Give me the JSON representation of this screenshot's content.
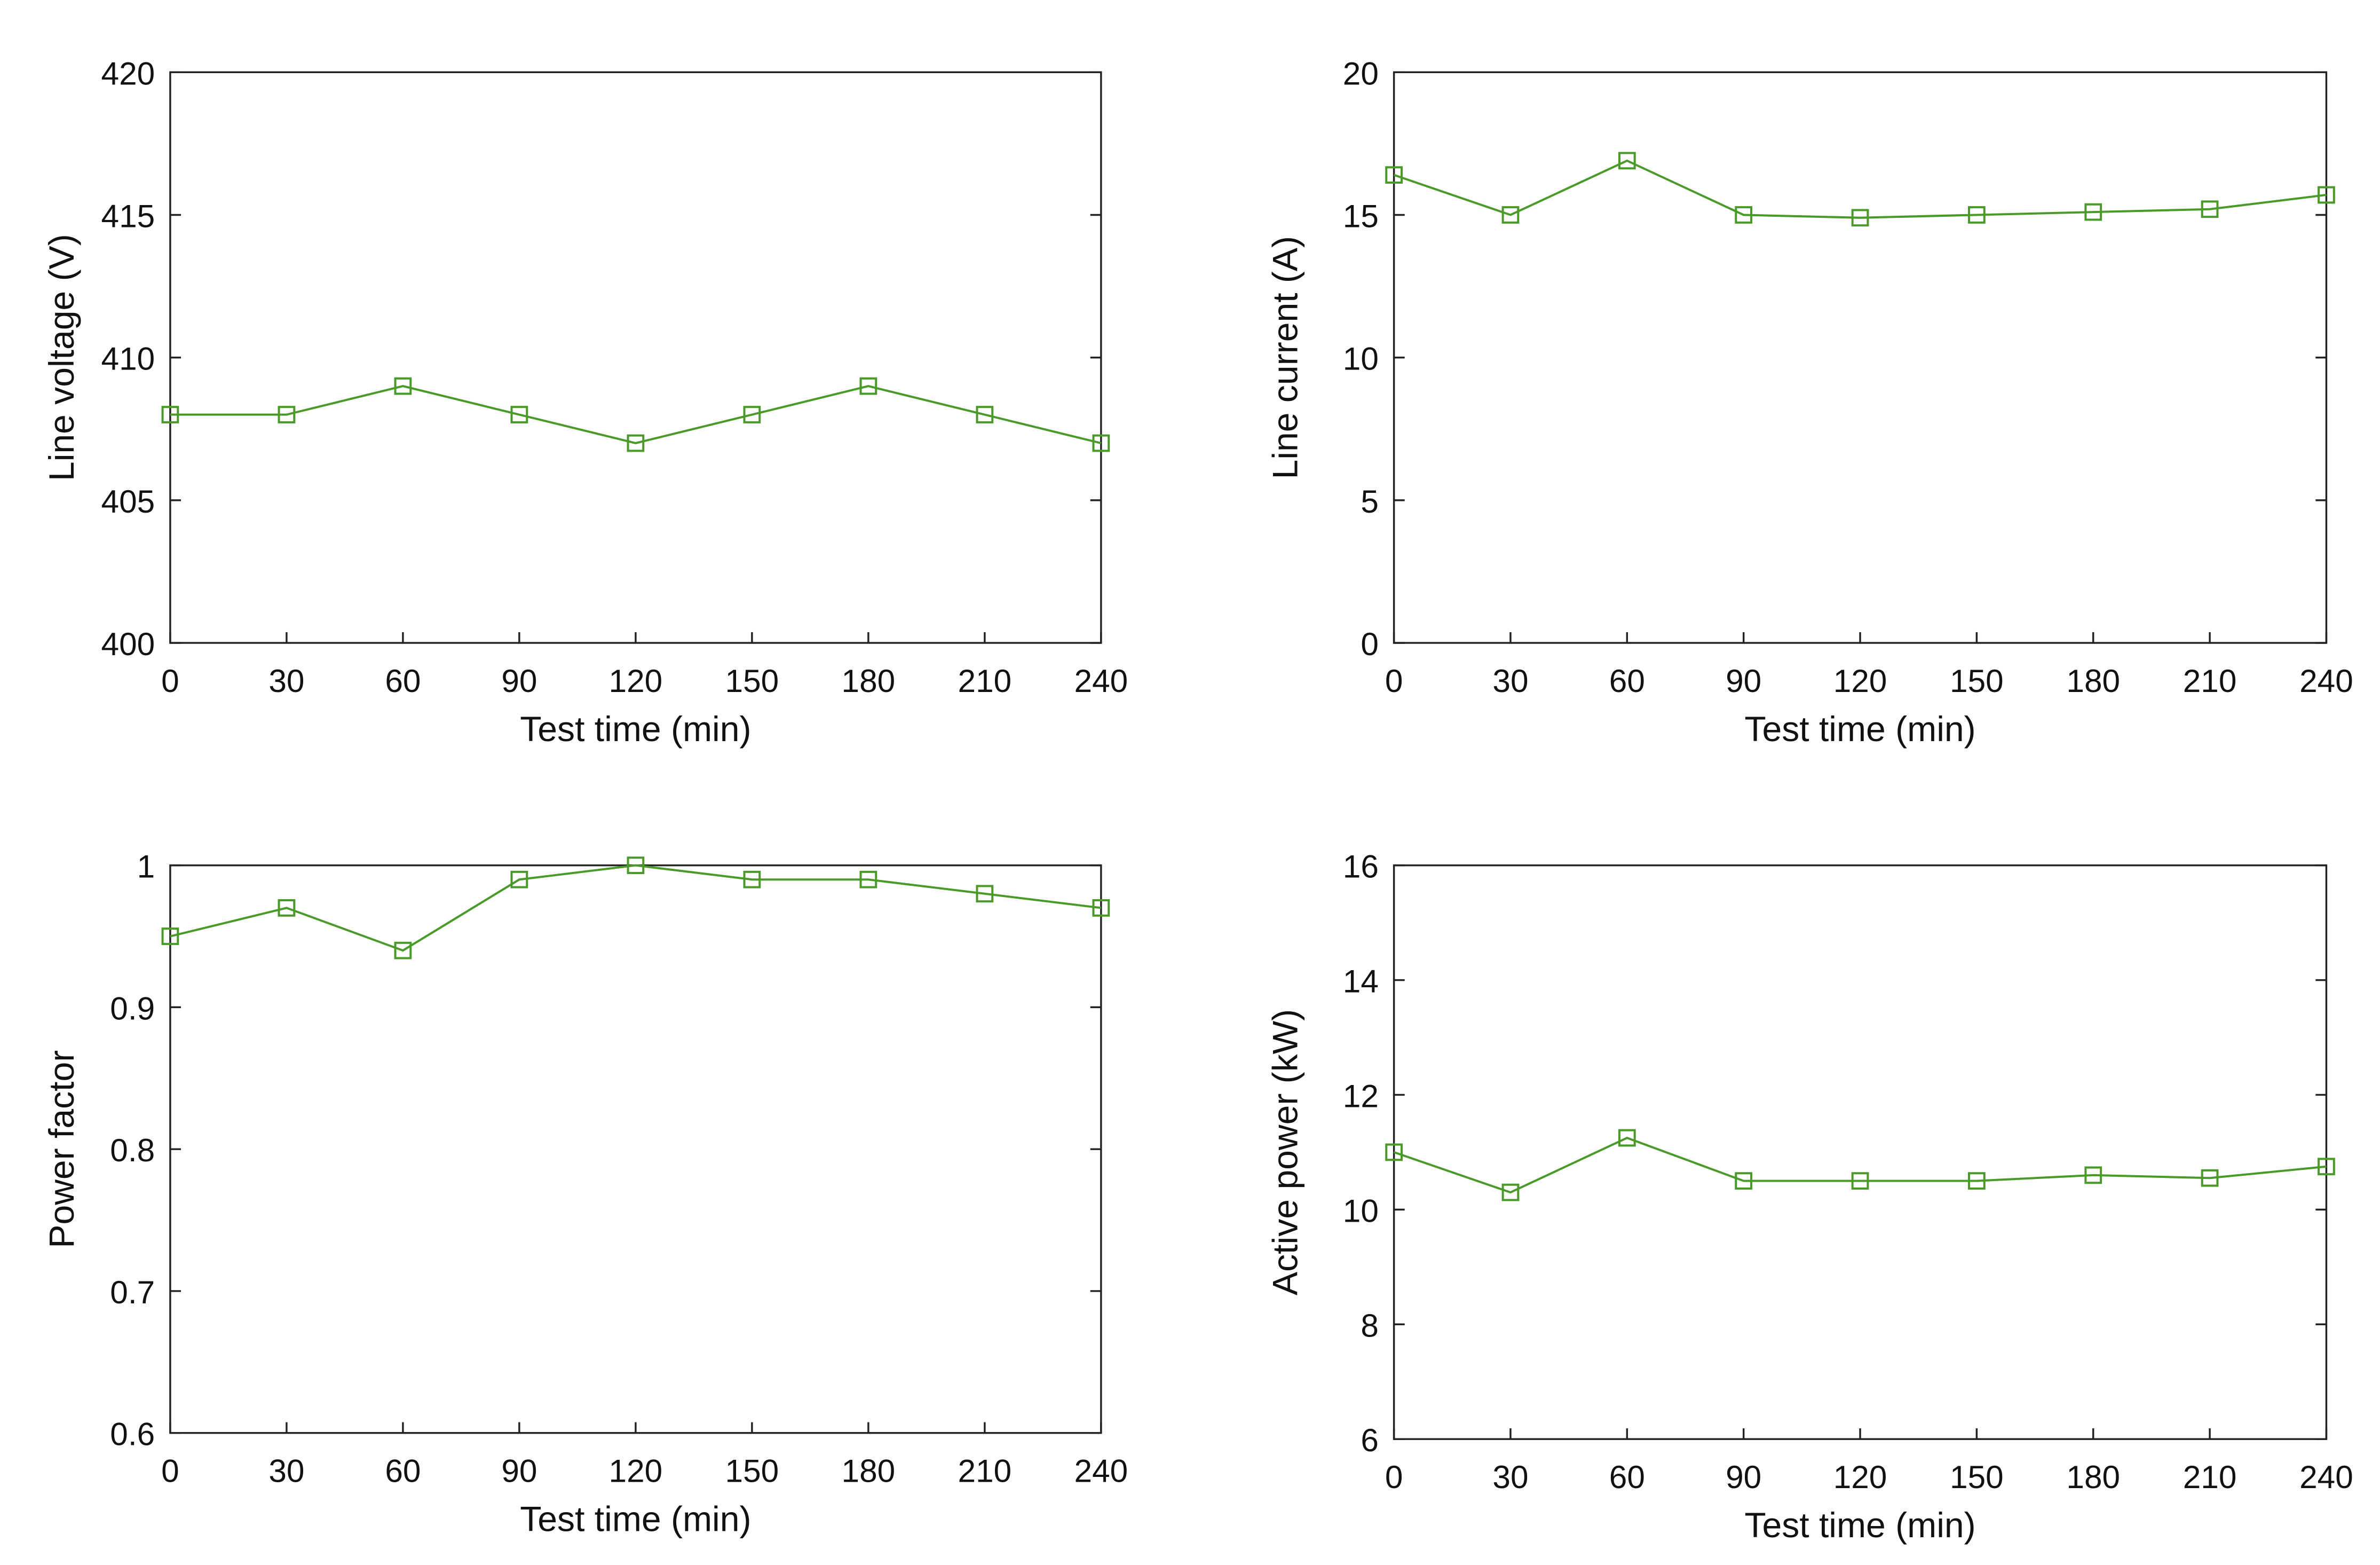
{
  "chart_data": [
    {
      "type": "line",
      "xlabel": "Test time (min)",
      "ylabel": "Line voltage (V)",
      "x": [
        0,
        30,
        60,
        90,
        120,
        150,
        180,
        210,
        240
      ],
      "values": [
        408,
        408,
        409,
        408,
        407,
        408,
        409,
        408,
        407
      ],
      "color": "#4a9a2a",
      "xlim": [
        0,
        240
      ],
      "xticks": [
        0,
        30,
        60,
        90,
        120,
        150,
        180,
        210,
        240
      ],
      "ylim": [
        400,
        420
      ],
      "yticks": [
        400,
        405,
        410,
        415,
        420
      ]
    },
    {
      "type": "line",
      "xlabel": "Test time (min)",
      "ylabel": "Line current (A)",
      "x": [
        0,
        30,
        60,
        90,
        120,
        150,
        180,
        210,
        240
      ],
      "values": [
        16.4,
        15,
        16.9,
        15,
        14.9,
        15,
        15.1,
        15.2,
        15.7
      ],
      "color": "#4a9a2a",
      "xlim": [
        0,
        240
      ],
      "xticks": [
        0,
        30,
        60,
        90,
        120,
        150,
        180,
        210,
        240
      ],
      "ylim": [
        0,
        20
      ],
      "yticks": [
        0,
        5,
        10,
        15,
        20
      ]
    },
    {
      "type": "line",
      "xlabel": "Test time (min)",
      "ylabel": "Power factor",
      "x": [
        0,
        30,
        60,
        90,
        120,
        150,
        180,
        210,
        240
      ],
      "values": [
        0.95,
        0.97,
        0.94,
        0.99,
        1,
        0.99,
        0.99,
        0.98,
        0.97
      ],
      "color": "#4a9a2a",
      "xlim": [
        0,
        240
      ],
      "xticks": [
        0,
        30,
        60,
        90,
        120,
        150,
        180,
        210,
        240
      ],
      "ylim": [
        0.6,
        1
      ],
      "yticks": [
        0.6,
        0.7,
        0.8,
        0.9,
        1
      ]
    },
    {
      "type": "line",
      "xlabel": "Test time (min)",
      "ylabel": "Active power (kW)",
      "x": [
        0,
        30,
        60,
        90,
        120,
        150,
        180,
        210,
        240
      ],
      "values": [
        11,
        10.3,
        11.25,
        10.5,
        10.5,
        10.5,
        10.6,
        10.55,
        10.75
      ],
      "color": "#4a9a2a",
      "xlim": [
        0,
        240
      ],
      "xticks": [
        0,
        30,
        60,
        90,
        120,
        150,
        180,
        210,
        240
      ],
      "ylim": [
        6,
        16
      ],
      "yticks": [
        6,
        8,
        10,
        12,
        14,
        16
      ]
    }
  ]
}
